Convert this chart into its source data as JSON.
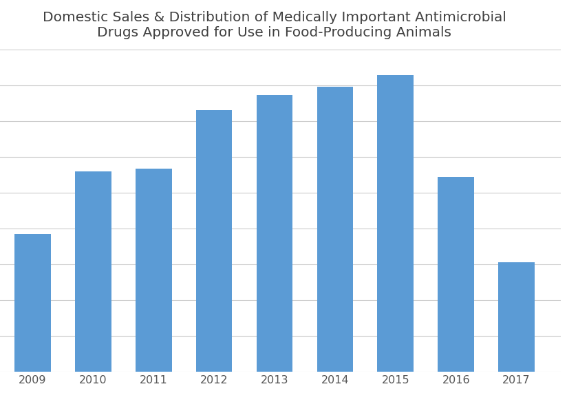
{
  "title": "Domestic Sales & Distribution of Medically Important Antimicrobial\nDrugs Approved for Use in Food-Producing Animals",
  "years": [
    2009,
    2010,
    2011,
    2012,
    2013,
    2014,
    2015,
    2016,
    2017
  ],
  "values": [
    7690631,
    11200625,
    11359326,
    14610072,
    15449991,
    15929443,
    16566474,
    10883971,
    6100921
  ],
  "bar_color": "#5B9BD5",
  "ylim": [
    0,
    18000000
  ],
  "ytick_interval": 2000000,
  "background_color": "#ffffff",
  "grid_color": "#cccccc",
  "title_fontsize": 14.5,
  "tick_fontsize": 11.5
}
